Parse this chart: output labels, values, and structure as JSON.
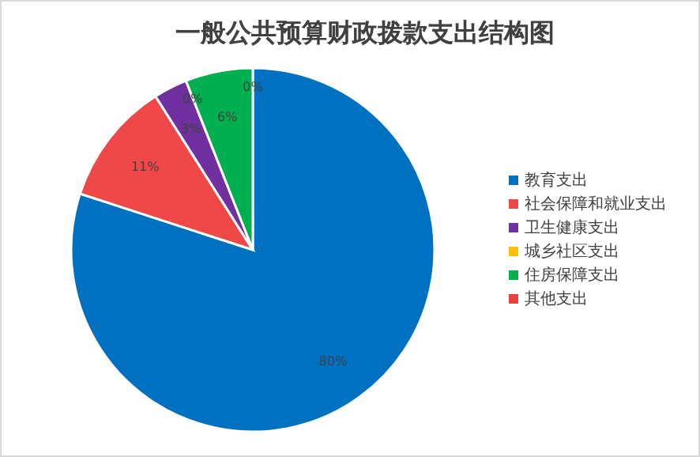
{
  "chart_data": {
    "type": "pie",
    "title": "一般公共预算财政拨款支出结构图",
    "categories": [
      "教育支出",
      "社会保障和就业支出",
      "卫生健康支出",
      "城乡社区支出",
      "住房保障支出",
      "其他支出"
    ],
    "values": [
      80,
      11,
      3,
      0,
      6,
      0
    ],
    "colors": [
      "#0070c0",
      "#f04848",
      "#7030a0",
      "#ffc000",
      "#00b050",
      "#e8413a"
    ],
    "value_labels": [
      "80%",
      "11%",
      "3%",
      "0%",
      "6%",
      "0%"
    ],
    "legend": "right"
  }
}
